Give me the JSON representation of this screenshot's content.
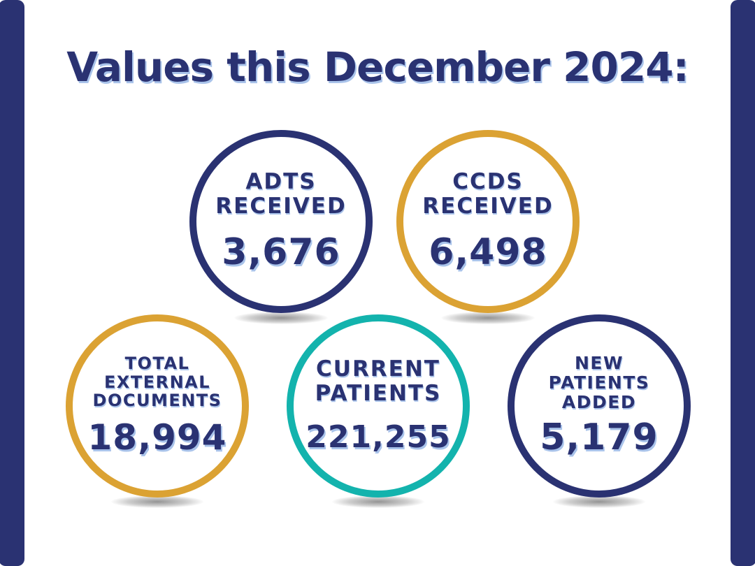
{
  "title": "Values this December 2024:",
  "colors": {
    "navy": "#2a3272",
    "gold": "#dba233",
    "teal": "#13b3ad",
    "shadow_blue": "#a9c3ea"
  },
  "stats": [
    {
      "label": "ADTS\nRECEIVED",
      "value": "3,676",
      "ring_color": "#2a3272"
    },
    {
      "label": "CCDS\nRECEIVED",
      "value": "6,498",
      "ring_color": "#dba233"
    },
    {
      "label": "TOTAL\nEXTERNAL\nDOCUMENTS",
      "value": "18,994",
      "ring_color": "#dba233"
    },
    {
      "label": "CURRENT\nPATIENTS",
      "value": "221,255",
      "ring_color": "#13b3ad"
    },
    {
      "label": "NEW\nPATIENTS\nADDED",
      "value": "5,179",
      "ring_color": "#2a3272"
    }
  ]
}
